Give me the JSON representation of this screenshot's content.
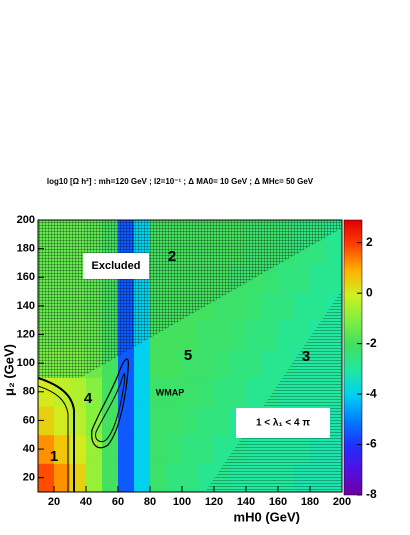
{
  "chart_data": {
    "type": "heatmap",
    "title": "log10 [Ω h²] : mh=120 GeV ; l2=10⁻¹ ; Δ MA0= 10 GeV ; Δ MHc= 50 GeV",
    "x_label": "mH0 (GeV)",
    "y_label": "μ₂ (GeV)",
    "xlim": [
      10,
      200
    ],
    "xticks": [
      20,
      40,
      60,
      80,
      100,
      120,
      140,
      160,
      180,
      200
    ],
    "ylim": [
      10,
      200
    ],
    "yticks": [
      20,
      40,
      60,
      80,
      100,
      120,
      140,
      160,
      180,
      200
    ],
    "zlim": [
      -8,
      2.9
    ],
    "zticks": [
      -8,
      -6,
      -4,
      -2,
      0,
      2
    ],
    "colormap": [
      "#7000a0",
      "#5010e0",
      "#2030ff",
      "#0080ff",
      "#00d0f0",
      "#20e8a0",
      "#40e060",
      "#80f040",
      "#d0f020",
      "#ffb000",
      "#ff4000",
      "#e00000"
    ],
    "x_edges": [
      10,
      20,
      30,
      40,
      50,
      60,
      70,
      80,
      90,
      100,
      110,
      120,
      130,
      140,
      150,
      160,
      170,
      180,
      190,
      200
    ],
    "y_edges": [
      10,
      30,
      50,
      70,
      90,
      110,
      130,
      150,
      170,
      190,
      200
    ],
    "z": [
      [
        1.8,
        1.2,
        0.4,
        -0.8,
        -2,
        -5.5,
        -4,
        -2.2,
        -2.5,
        -2.5,
        -2.8,
        -2.8,
        -3,
        -3,
        -3,
        -3,
        -3.2,
        -3.2,
        -3.2
      ],
      [
        1.2,
        0.6,
        0,
        -0.8,
        -2,
        -5.5,
        -4,
        -2.2,
        -2.3,
        -2.5,
        -2.5,
        -2.8,
        -2.8,
        -3,
        -3,
        -3,
        -3,
        -3.2,
        -3.2
      ],
      [
        0.4,
        0,
        -0.4,
        -1,
        -2,
        -5.5,
        -4,
        -2.2,
        -2.2,
        -2.3,
        -2.5,
        -2.5,
        -2.8,
        -2.8,
        -3,
        -3,
        -3,
        -3,
        -3.2
      ],
      [
        0,
        -0.3,
        -0.5,
        -1,
        -2,
        -5.5,
        -4,
        -2.2,
        -2.2,
        -2.2,
        -2.3,
        -2.5,
        -2.5,
        -2.8,
        -2.8,
        -3,
        -3,
        -3,
        -3
      ],
      [
        -1.2,
        -1.2,
        -1.2,
        -1.4,
        -2,
        -5.5,
        -4,
        -2,
        -2,
        -2.2,
        -2.2,
        -2.3,
        -2.5,
        -2.5,
        -2.8,
        -2.8,
        -3,
        -3,
        -3
      ],
      [
        -1.4,
        -1.4,
        -1.4,
        -1.5,
        -2,
        -5.5,
        -4,
        -2,
        -2,
        -2,
        -2.2,
        -2.2,
        -2.3,
        -2.5,
        -2.5,
        -2.8,
        -2.8,
        -3,
        -3
      ],
      [
        -1.5,
        -1.5,
        -1.5,
        -1.6,
        -2,
        -5.5,
        -4,
        -2,
        -2,
        -2,
        -2,
        -2.2,
        -2.2,
        -2.3,
        -2.5,
        -2.5,
        -2.8,
        -2.8,
        -3
      ],
      [
        -1.5,
        -1.5,
        -1.5,
        -1.6,
        -2,
        -5.5,
        -4,
        -2,
        -2,
        -2,
        -2,
        -2,
        -2.2,
        -2.2,
        -2.3,
        -2.5,
        -2.5,
        -2.8,
        -2.8
      ],
      [
        -1.5,
        -1.5,
        -1.5,
        -1.6,
        -2,
        -5.5,
        -4,
        -2,
        -2,
        -2,
        -2,
        -2,
        -2,
        -2.2,
        -2.2,
        -2.3,
        -2.5,
        -2.5,
        -2.8
      ],
      [
        -1.5,
        -1.5,
        -1.5,
        -1.6,
        -2,
        -5.5,
        -4,
        -2,
        -2,
        -2,
        -2,
        -2,
        -2,
        -2.2,
        -2.2,
        -2.3,
        -2.5,
        -2.5,
        -2.8
      ]
    ],
    "annotations": {
      "excluded": "Excluded",
      "region_1": "1",
      "region_2": "2",
      "region_3": "3",
      "region_4": "4",
      "region_5": "5",
      "wmap": "WMAP",
      "lambda": "1 < λ₁ < 4 π"
    }
  }
}
